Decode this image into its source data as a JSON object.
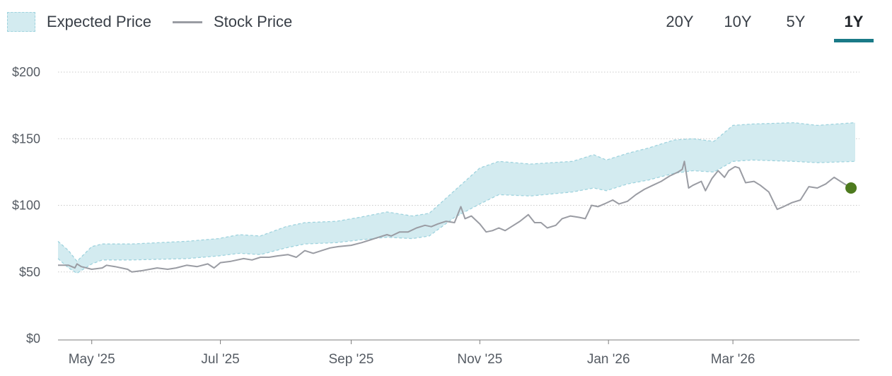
{
  "legend": {
    "band_label": "Expected Price",
    "line_label": "Stock Price"
  },
  "tabs": [
    {
      "label": "20Y",
      "active": false
    },
    {
      "label": "10Y",
      "active": false
    },
    {
      "label": "5Y",
      "active": false
    },
    {
      "label": "1Y",
      "active": true
    }
  ],
  "colors": {
    "band_fill": "#d3ebf0",
    "band_edge": "#9fd3de",
    "stock_line": "#9a9ca3",
    "current_marker": "#4d7a1e",
    "active_tab": "#1a7a87",
    "grid": "#c9c9c9"
  },
  "chart_data": {
    "type": "line",
    "title": "",
    "xlabel": "",
    "ylabel": "",
    "ylim": [
      0,
      200
    ],
    "y_ticks": [
      "$0",
      "$50",
      "$100",
      "$150",
      "$200"
    ],
    "y_tick_values": [
      0,
      50,
      100,
      150,
      200
    ],
    "x_ticks": [
      "May '25",
      "Jul '25",
      "Sep '25",
      "Nov '25",
      "Jan '26",
      "Mar '26"
    ],
    "x_tick_dates": [
      "2025-05-01",
      "2025-07-01",
      "2025-09-01",
      "2025-11-01",
      "2026-01-01",
      "2026-03-01"
    ],
    "xlim": [
      "2025-04-15",
      "2026-04-30"
    ],
    "grid": "horizontal dotted",
    "legend_position": "top-left",
    "series": [
      {
        "name": "Expected Price",
        "kind": "band",
        "points": [
          [
            "2025-04-15",
            60,
            73
          ],
          [
            "2025-04-20",
            53,
            66
          ],
          [
            "2025-04-24",
            49,
            58
          ],
          [
            "2025-05-01",
            56,
            69
          ],
          [
            "2025-05-06",
            59,
            71
          ],
          [
            "2025-05-20",
            59,
            71
          ],
          [
            "2025-06-15",
            60,
            73
          ],
          [
            "2025-06-30",
            62,
            75
          ],
          [
            "2025-07-10",
            64,
            78
          ],
          [
            "2025-07-20",
            63,
            77
          ],
          [
            "2025-08-01",
            68,
            84
          ],
          [
            "2025-08-10",
            71,
            87
          ],
          [
            "2025-08-25",
            72,
            88
          ],
          [
            "2025-09-05",
            74,
            91
          ],
          [
            "2025-09-18",
            76,
            95
          ],
          [
            "2025-09-30",
            75,
            92
          ],
          [
            "2025-10-08",
            77,
            94
          ],
          [
            "2025-10-20",
            91,
            111
          ],
          [
            "2025-11-01",
            101,
            128
          ],
          [
            "2025-11-10",
            108,
            133
          ],
          [
            "2025-11-25",
            107,
            131
          ],
          [
            "2025-12-15",
            110,
            133
          ],
          [
            "2025-12-25",
            113,
            138
          ],
          [
            "2025-12-31",
            111,
            134
          ],
          [
            "2026-01-10",
            116,
            139
          ],
          [
            "2026-01-20",
            119,
            143
          ],
          [
            "2026-02-01",
            124,
            149
          ],
          [
            "2026-02-10",
            126,
            150
          ],
          [
            "2026-02-20",
            125,
            148
          ],
          [
            "2026-03-01",
            133,
            160
          ],
          [
            "2026-03-10",
            134,
            161
          ],
          [
            "2026-03-30",
            133,
            162
          ],
          [
            "2026-04-10",
            132,
            160
          ],
          [
            "2026-04-28",
            133,
            162
          ]
        ]
      },
      {
        "name": "Stock Price",
        "kind": "line",
        "points": [
          [
            "2025-04-15",
            55
          ],
          [
            "2025-04-20",
            55
          ],
          [
            "2025-04-23",
            53
          ],
          [
            "2025-04-24",
            56
          ],
          [
            "2025-04-26",
            54
          ],
          [
            "2025-05-01",
            52
          ],
          [
            "2025-05-06",
            53
          ],
          [
            "2025-05-08",
            55
          ],
          [
            "2025-05-12",
            54
          ],
          [
            "2025-05-18",
            52
          ],
          [
            "2025-05-20",
            50
          ],
          [
            "2025-05-25",
            51
          ],
          [
            "2025-06-01",
            53
          ],
          [
            "2025-06-06",
            52
          ],
          [
            "2025-06-10",
            53
          ],
          [
            "2025-06-15",
            55
          ],
          [
            "2025-06-20",
            54
          ],
          [
            "2025-06-25",
            56
          ],
          [
            "2025-06-28",
            53
          ],
          [
            "2025-07-01",
            57
          ],
          [
            "2025-07-06",
            58
          ],
          [
            "2025-07-12",
            60
          ],
          [
            "2025-07-16",
            59
          ],
          [
            "2025-07-20",
            61
          ],
          [
            "2025-07-24",
            61
          ],
          [
            "2025-07-28",
            62
          ],
          [
            "2025-08-02",
            63
          ],
          [
            "2025-08-06",
            61
          ],
          [
            "2025-08-10",
            66
          ],
          [
            "2025-08-14",
            64
          ],
          [
            "2025-08-18",
            66
          ],
          [
            "2025-08-22",
            68
          ],
          [
            "2025-08-26",
            69
          ],
          [
            "2025-09-01",
            70
          ],
          [
            "2025-09-06",
            72
          ],
          [
            "2025-09-10",
            74
          ],
          [
            "2025-09-14",
            76
          ],
          [
            "2025-09-18",
            78
          ],
          [
            "2025-09-20",
            77
          ],
          [
            "2025-09-24",
            80
          ],
          [
            "2025-09-28",
            80
          ],
          [
            "2025-10-02",
            83
          ],
          [
            "2025-10-06",
            85
          ],
          [
            "2025-10-09",
            84
          ],
          [
            "2025-10-12",
            86
          ],
          [
            "2025-10-16",
            88
          ],
          [
            "2025-10-20",
            87
          ],
          [
            "2025-10-23",
            99
          ],
          [
            "2025-10-25",
            90
          ],
          [
            "2025-10-28",
            92
          ],
          [
            "2025-11-01",
            86
          ],
          [
            "2025-11-04",
            80
          ],
          [
            "2025-11-07",
            81
          ],
          [
            "2025-11-10",
            83
          ],
          [
            "2025-11-13",
            81
          ],
          [
            "2025-11-16",
            84
          ],
          [
            "2025-11-20",
            88
          ],
          [
            "2025-11-24",
            93
          ],
          [
            "2025-11-27",
            87
          ],
          [
            "2025-11-30",
            87
          ],
          [
            "2025-12-03",
            83
          ],
          [
            "2025-12-07",
            85
          ],
          [
            "2025-12-10",
            90
          ],
          [
            "2025-12-14",
            92
          ],
          [
            "2025-12-18",
            91
          ],
          [
            "2025-12-21",
            90
          ],
          [
            "2025-12-24",
            100
          ],
          [
            "2025-12-27",
            99
          ],
          [
            "2025-12-30",
            101
          ],
          [
            "2026-01-03",
            104
          ],
          [
            "2026-01-06",
            101
          ],
          [
            "2026-01-10",
            103
          ],
          [
            "2026-01-14",
            108
          ],
          [
            "2026-01-18",
            112
          ],
          [
            "2026-01-22",
            115
          ],
          [
            "2026-01-26",
            118
          ],
          [
            "2026-01-30",
            122
          ],
          [
            "2026-02-03",
            125
          ],
          [
            "2026-02-05",
            127
          ],
          [
            "2026-02-06",
            133
          ],
          [
            "2026-02-08",
            113
          ],
          [
            "2026-02-10",
            115
          ],
          [
            "2026-02-14",
            118
          ],
          [
            "2026-02-16",
            111
          ],
          [
            "2026-02-19",
            120
          ],
          [
            "2026-02-22",
            126
          ],
          [
            "2026-02-25",
            121
          ],
          [
            "2026-02-27",
            126
          ],
          [
            "2026-03-02",
            129
          ],
          [
            "2026-03-04",
            128
          ],
          [
            "2026-03-07",
            117
          ],
          [
            "2026-03-11",
            118
          ],
          [
            "2026-03-14",
            115
          ],
          [
            "2026-03-18",
            110
          ],
          [
            "2026-03-22",
            97
          ],
          [
            "2026-03-25",
            99
          ],
          [
            "2026-03-29",
            102
          ],
          [
            "2026-04-02",
            104
          ],
          [
            "2026-04-06",
            114
          ],
          [
            "2026-04-10",
            113
          ],
          [
            "2026-04-14",
            116
          ],
          [
            "2026-04-18",
            121
          ],
          [
            "2026-04-22",
            117
          ],
          [
            "2026-04-26",
            113
          ]
        ]
      }
    ],
    "current_point": [
      "2026-04-26",
      113
    ]
  }
}
